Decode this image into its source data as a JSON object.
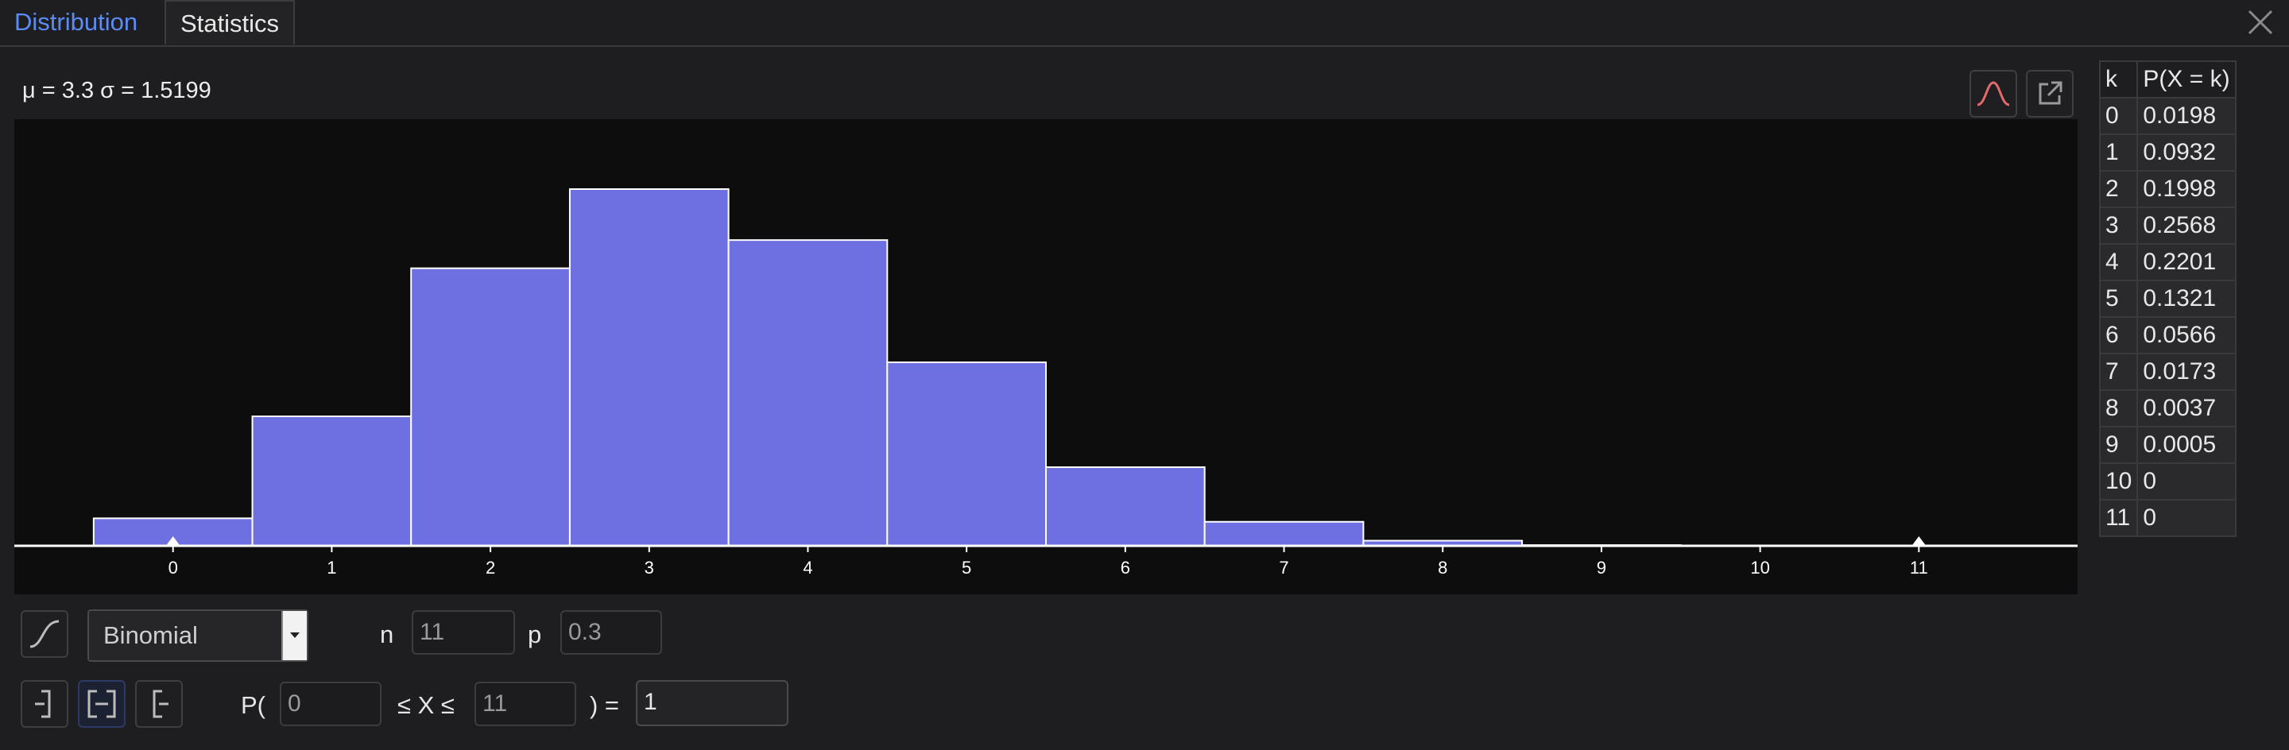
{
  "tabs": [
    {
      "label": "Distribution",
      "active": true
    },
    {
      "label": "Statistics",
      "active": false
    }
  ],
  "summary": "μ = 3.3 σ = 1.5199",
  "table": {
    "headers": [
      "k",
      "P(X = k)"
    ],
    "rows": [
      [
        "0",
        "0.0198"
      ],
      [
        "1",
        "0.0932"
      ],
      [
        "2",
        "0.1998"
      ],
      [
        "3",
        "0.2568"
      ],
      [
        "4",
        "0.2201"
      ],
      [
        "5",
        "0.1321"
      ],
      [
        "6",
        "0.0566"
      ],
      [
        "7",
        "0.0173"
      ],
      [
        "8",
        "0.0037"
      ],
      [
        "9",
        "0.0005"
      ],
      [
        "10",
        "0"
      ],
      [
        "11",
        "0"
      ]
    ]
  },
  "distribution": {
    "selected": "Binomial",
    "n_label": "n",
    "n_value": "11",
    "p_label": "p",
    "p_value": "0.3"
  },
  "probability": {
    "prefix": "P(",
    "lower": "0",
    "middle": "≤ X ≤",
    "upper": "11",
    "suffix": ") =",
    "result": "1"
  },
  "colors": {
    "bar_fill": "#6e6fe0",
    "accent": "#5b8bf5",
    "curve_icon": "#e36a6a"
  },
  "icons": [
    "close-icon",
    "normal-curve-icon",
    "export-icon",
    "cumulative-icon",
    "left-sided-icon",
    "interval-icon",
    "right-sided-icon"
  ],
  "chart_data": {
    "type": "bar",
    "categories": [
      "0",
      "1",
      "2",
      "3",
      "4",
      "5",
      "6",
      "7",
      "8",
      "9",
      "10",
      "11"
    ],
    "values": [
      0.0198,
      0.0932,
      0.1998,
      0.2568,
      0.2201,
      0.1321,
      0.0566,
      0.0173,
      0.0037,
      0.0005,
      0,
      0
    ],
    "xlim": [
      -1,
      12
    ],
    "bounds_markers": [
      0,
      11
    ]
  }
}
